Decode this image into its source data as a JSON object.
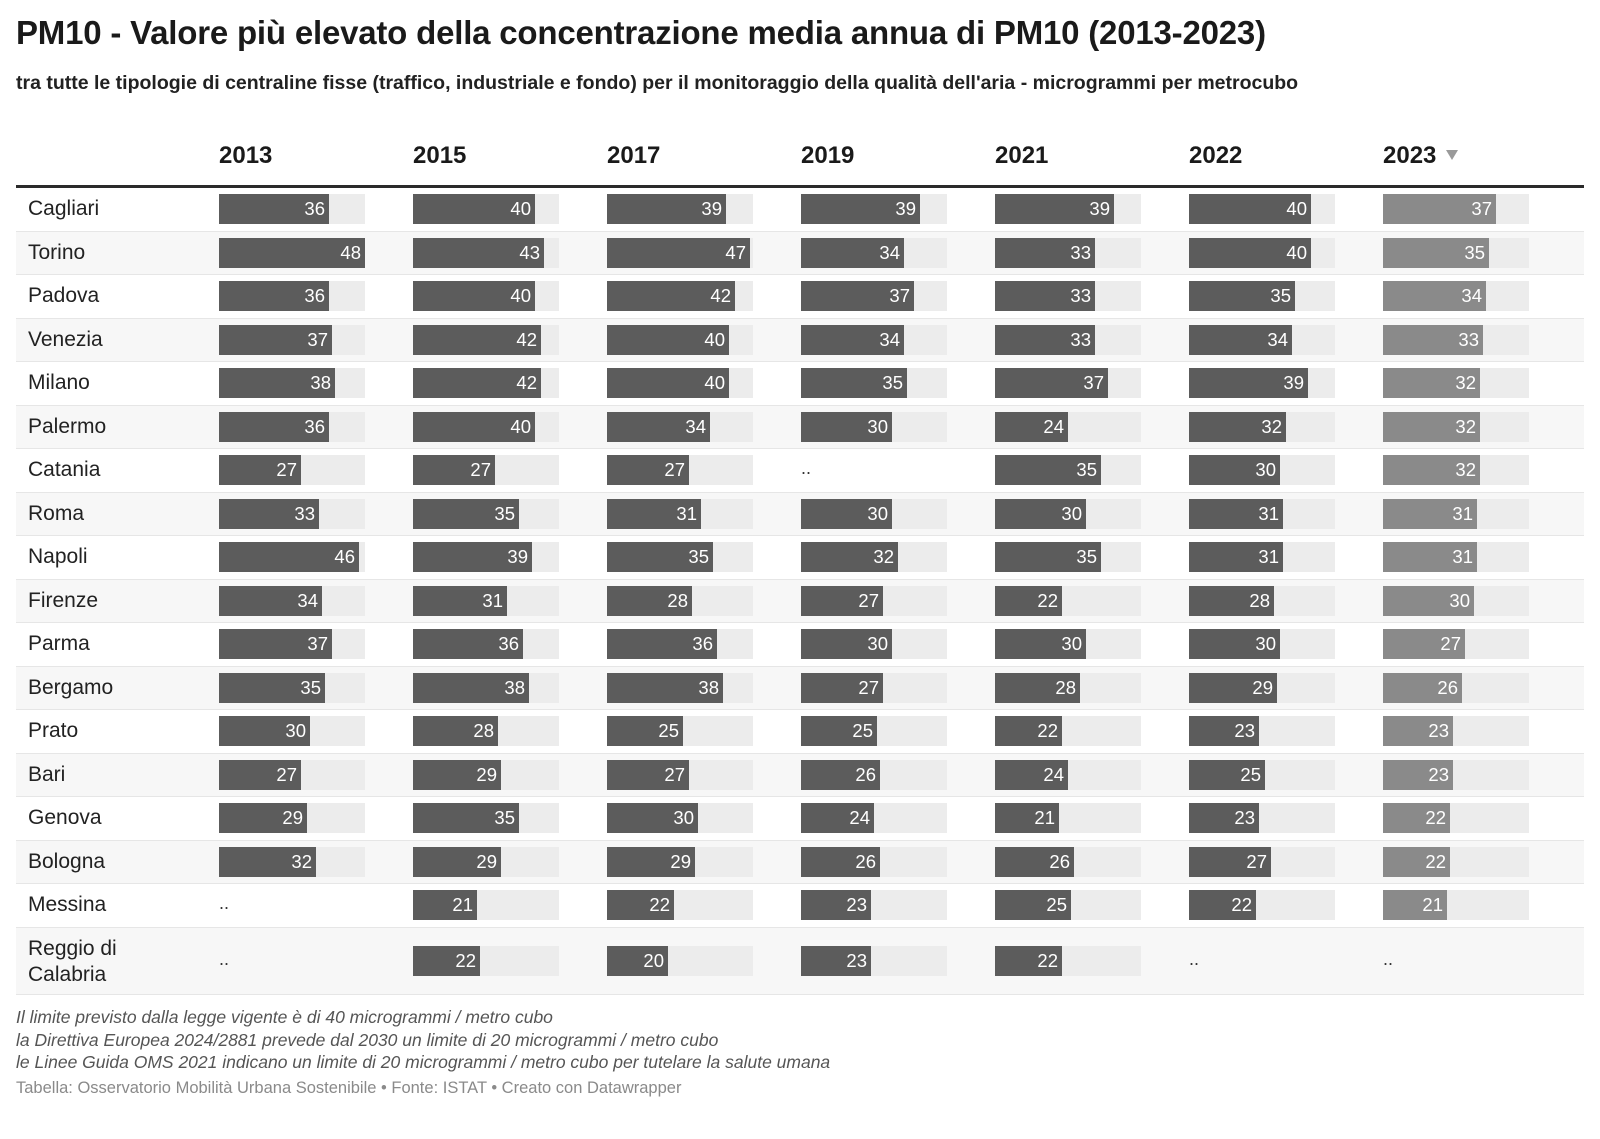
{
  "title": "PM10 - Valore più elevato della concentrazione media annua di PM10 (2013-2023)",
  "subtitle": "tra tutte le tipologie di centraline fisse (traffico, industriale e fondo) per il monitoraggio della qualità dell'aria - microgrammi per metrocubo",
  "colors": {
    "bar": "#5c5c5c",
    "bar_sorted": "#8a8a8a",
    "track": "#ececec"
  },
  "chart_data": {
    "type": "table",
    "columns": [
      "2013",
      "2015",
      "2017",
      "2019",
      "2021",
      "2022",
      "2023"
    ],
    "sorted_column": "2023",
    "sort_direction": "descending",
    "missing_marker": "..",
    "scale_max": 48,
    "rows": [
      {
        "city": "Cagliari",
        "values": [
          36,
          40,
          39,
          39,
          39,
          40,
          37
        ]
      },
      {
        "city": "Torino",
        "values": [
          48,
          43,
          47,
          34,
          33,
          40,
          35
        ]
      },
      {
        "city": "Padova",
        "values": [
          36,
          40,
          42,
          37,
          33,
          35,
          34
        ]
      },
      {
        "city": "Venezia",
        "values": [
          37,
          42,
          40,
          34,
          33,
          34,
          33
        ]
      },
      {
        "city": "Milano",
        "values": [
          38,
          42,
          40,
          35,
          37,
          39,
          32
        ]
      },
      {
        "city": "Palermo",
        "values": [
          36,
          40,
          34,
          30,
          24,
          32,
          32
        ]
      },
      {
        "city": "Catania",
        "values": [
          27,
          27,
          27,
          null,
          35,
          30,
          32
        ]
      },
      {
        "city": "Roma",
        "values": [
          33,
          35,
          31,
          30,
          30,
          31,
          31
        ]
      },
      {
        "city": "Napoli",
        "values": [
          46,
          39,
          35,
          32,
          35,
          31,
          31
        ]
      },
      {
        "city": "Firenze",
        "values": [
          34,
          31,
          28,
          27,
          22,
          28,
          30
        ]
      },
      {
        "city": "Parma",
        "values": [
          37,
          36,
          36,
          30,
          30,
          30,
          27
        ]
      },
      {
        "city": "Bergamo",
        "values": [
          35,
          38,
          38,
          27,
          28,
          29,
          26
        ]
      },
      {
        "city": "Prato",
        "values": [
          30,
          28,
          25,
          25,
          22,
          23,
          23
        ]
      },
      {
        "city": "Bari",
        "values": [
          27,
          29,
          27,
          26,
          24,
          25,
          23
        ]
      },
      {
        "city": "Genova",
        "values": [
          29,
          35,
          30,
          24,
          21,
          23,
          22
        ]
      },
      {
        "city": "Bologna",
        "values": [
          32,
          29,
          29,
          26,
          26,
          27,
          22
        ]
      },
      {
        "city": "Messina",
        "values": [
          null,
          21,
          22,
          23,
          25,
          22,
          21
        ]
      },
      {
        "city": "Reggio di Calabria",
        "values": [
          null,
          22,
          20,
          23,
          22,
          null,
          null
        ]
      }
    ]
  },
  "notes": [
    "Il limite previsto dalla legge vigente è di 40 microgrammi / metro cubo",
    "la Direttiva Europea 2024/2881 prevede dal 2030 un limite di 20 microgrammi / metro cubo",
    "le Linee Guida OMS 2021 indicano un limite di 20 microgrammi / metro cubo per tutelare la salute umana"
  ],
  "footer": "Tabella: Osservatorio Mobilità Urbana Sostenibile • Fonte: ISTAT • Creato con Datawrapper"
}
